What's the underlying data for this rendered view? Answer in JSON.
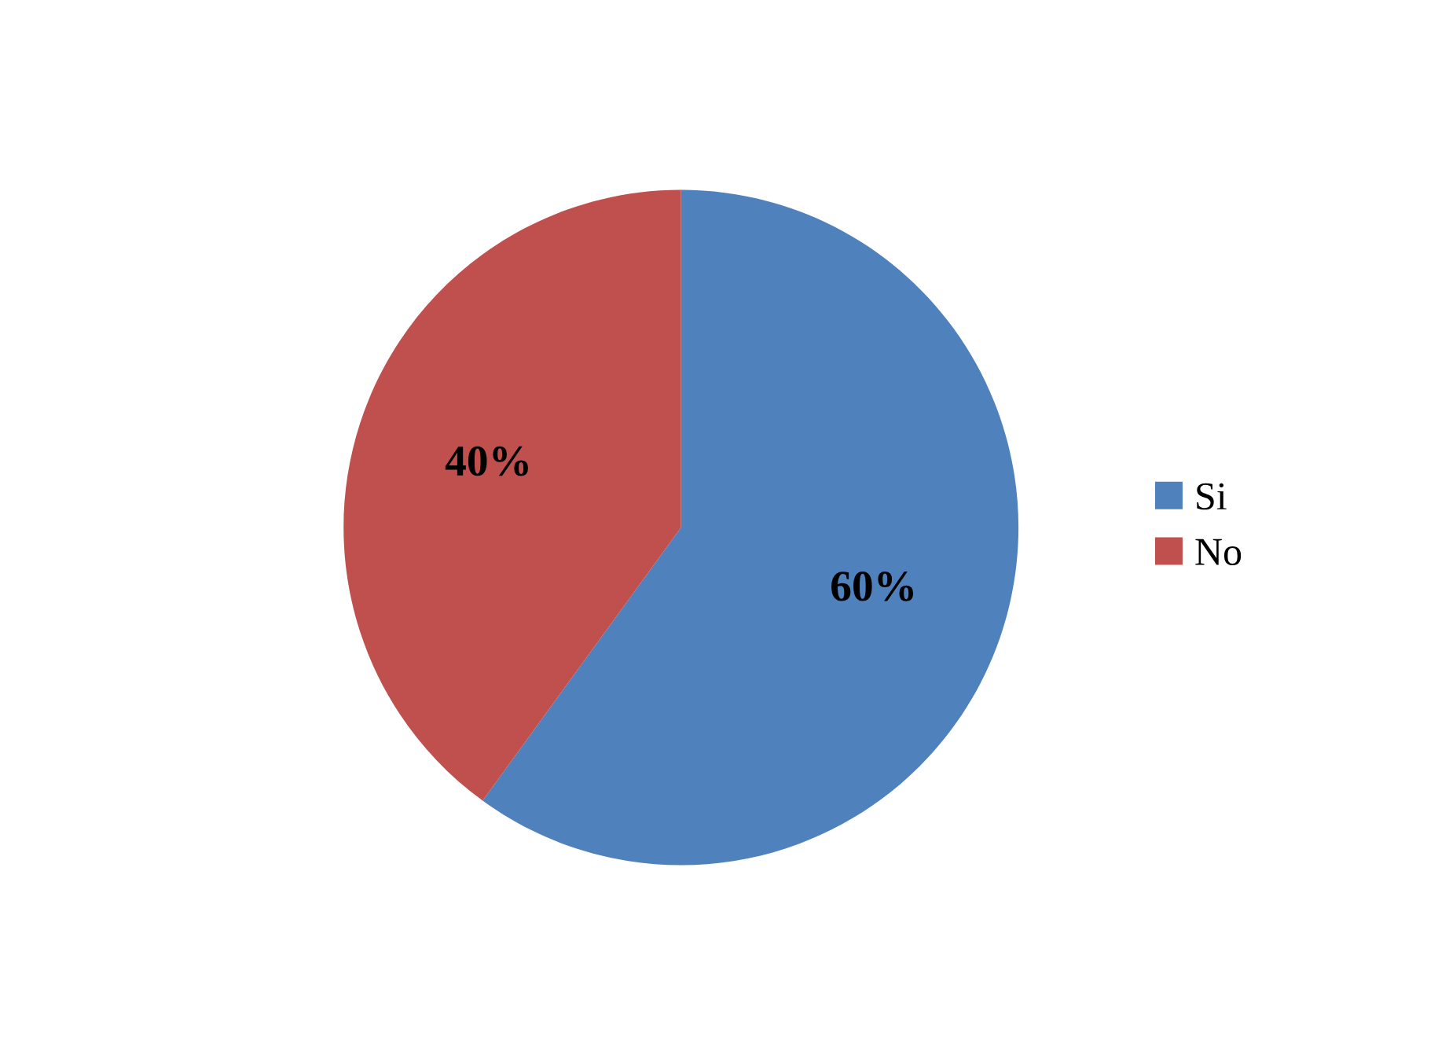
{
  "chart_data": {
    "type": "pie",
    "categories": [
      "Si",
      "No"
    ],
    "values": [
      60,
      40
    ],
    "colors": [
      "#4f81bd",
      "#c0504d"
    ],
    "value_labels": [
      "60%",
      "40%"
    ],
    "legend": "right"
  }
}
